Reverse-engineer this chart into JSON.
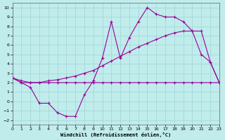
{
  "bg_color": "#c0ecec",
  "grid_color": "#a0d4d4",
  "line_color": "#990099",
  "xlabel": "Windchill (Refroidissement éolien,°C)",
  "xlim": [
    0,
    23
  ],
  "ylim": [
    -2.5,
    10.5
  ],
  "xticks": [
    0,
    1,
    2,
    3,
    4,
    5,
    6,
    7,
    8,
    9,
    10,
    11,
    12,
    13,
    14,
    15,
    16,
    17,
    18,
    19,
    20,
    21,
    22,
    23
  ],
  "yticks": [
    -2,
    -1,
    0,
    1,
    2,
    3,
    4,
    5,
    6,
    7,
    8,
    9,
    10
  ],
  "line_wavy_x": [
    0,
    1,
    2,
    3,
    4,
    5,
    6,
    7,
    8,
    9,
    10,
    11,
    12,
    13,
    14,
    15,
    16,
    17,
    18,
    19,
    20,
    21,
    22,
    23
  ],
  "line_wavy_y": [
    2.5,
    2.0,
    1.5,
    -0.2,
    -0.2,
    -1.2,
    -1.6,
    -1.6,
    0.7,
    2.2,
    4.6,
    8.5,
    4.6,
    6.8,
    8.5,
    10.0,
    9.3,
    9.0,
    9.0,
    8.5,
    7.5,
    5.0,
    4.2,
    2.0
  ],
  "line_rise_x": [
    0,
    1,
    2,
    3,
    4,
    5,
    6,
    7,
    8,
    9,
    10,
    11,
    12,
    13,
    14,
    15,
    16,
    17,
    18,
    19,
    20,
    21,
    22,
    23
  ],
  "line_rise_y": [
    2.5,
    2.2,
    2.0,
    2.0,
    2.2,
    2.3,
    2.5,
    2.7,
    3.0,
    3.3,
    3.8,
    4.3,
    4.8,
    5.3,
    5.8,
    6.2,
    6.6,
    7.0,
    7.3,
    7.5,
    7.5,
    7.5,
    4.2,
    2.0
  ],
  "line_flat_x": [
    0,
    1,
    2,
    3,
    4,
    5,
    6,
    7,
    8,
    9,
    10,
    11,
    12,
    13,
    14,
    15,
    16,
    17,
    18,
    19,
    20,
    21,
    22,
    23
  ],
  "line_flat_y": [
    2.5,
    2.0,
    2.0,
    2.0,
    2.0,
    2.0,
    2.0,
    2.0,
    2.0,
    2.0,
    2.0,
    2.0,
    2.0,
    2.0,
    2.0,
    2.0,
    2.0,
    2.0,
    2.0,
    2.0,
    2.0,
    2.0,
    2.0,
    2.0
  ]
}
